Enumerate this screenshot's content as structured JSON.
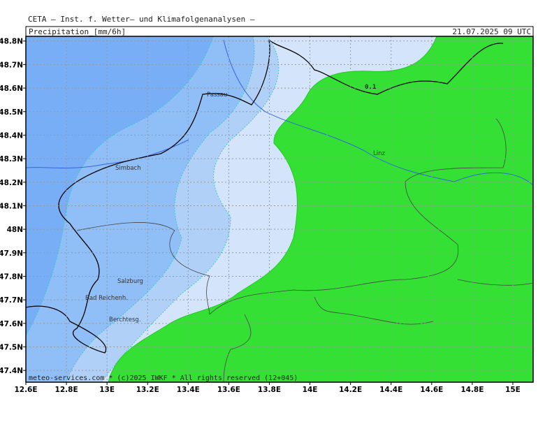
{
  "header": {
    "title": "CETA — Inst. f. Wetter— und Klimafolgenanalysen —",
    "field": "Precipitation_[mm/6h]",
    "valid": "21.07.2025 09 UTC"
  },
  "map": {
    "xlim": [
      12.6,
      15.1
    ],
    "ylim": [
      47.35,
      48.82
    ],
    "xticks": [
      {
        "value": 12.6,
        "label": "12.6E"
      },
      {
        "value": 12.8,
        "label": "12.8E"
      },
      {
        "value": 13,
        "label": "13E"
      },
      {
        "value": 13.2,
        "label": "13.2E"
      },
      {
        "value": 13.4,
        "label": "13.4E"
      },
      {
        "value": 13.6,
        "label": "13.6E"
      },
      {
        "value": 13.8,
        "label": "13.8E"
      },
      {
        "value": 14,
        "label": "14E"
      },
      {
        "value": 14.2,
        "label": "14.2E"
      },
      {
        "value": 14.4,
        "label": "14.4E"
      },
      {
        "value": 14.6,
        "label": "14.6E"
      },
      {
        "value": 14.8,
        "label": "14.8E"
      },
      {
        "value": 15,
        "label": "15E"
      }
    ],
    "yticks": [
      {
        "value": 47.4,
        "label": "47.4N"
      },
      {
        "value": 47.5,
        "label": "47.5N"
      },
      {
        "value": 47.6,
        "label": "47.6N"
      },
      {
        "value": 47.7,
        "label": "47.7N"
      },
      {
        "value": 47.8,
        "label": "47.8N"
      },
      {
        "value": 47.9,
        "label": "47.9N"
      },
      {
        "value": 48,
        "label": "48N"
      },
      {
        "value": 48.1,
        "label": "48.1N"
      },
      {
        "value": 48.2,
        "label": "48.2N"
      },
      {
        "value": 48.3,
        "label": "48.3N"
      },
      {
        "value": 48.4,
        "label": "48.4N"
      },
      {
        "value": 48.5,
        "label": "48.5N"
      },
      {
        "value": 48.6,
        "label": "48.6N"
      },
      {
        "value": 48.7,
        "label": "48.7N"
      },
      {
        "value": 48.8,
        "label": "48.8N"
      }
    ],
    "contour_label": "0.1",
    "places": [
      "Passau",
      "Linz",
      "Simbach",
      "Salzburg",
      "Bad Reichenh.",
      "Berchtesg."
    ]
  },
  "footer": "meteo-services.com * (c)2025 IWKF * All rights reserved (12+045)"
}
